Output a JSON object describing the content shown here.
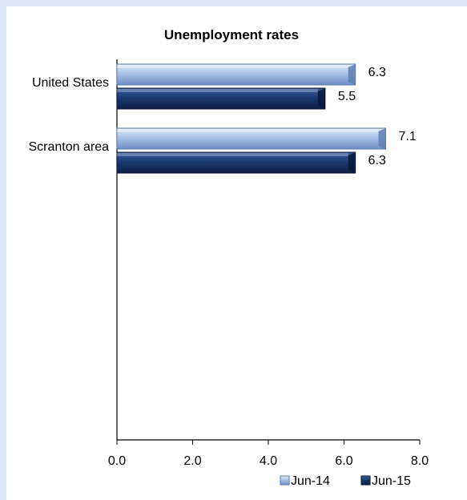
{
  "chart_data": {
    "type": "bar",
    "orientation": "horizontal",
    "title": "Unemployment rates",
    "categories": [
      "United States",
      "Scranton area"
    ],
    "series": [
      {
        "name": "Jun-14",
        "values": [
          6.3,
          7.1
        ],
        "color": "#a9c2e6"
      },
      {
        "name": "Jun-15",
        "values": [
          5.5,
          6.3
        ],
        "color": "#1c3a6e"
      }
    ],
    "xlim": [
      0,
      8
    ],
    "xticks": [
      "0.0",
      "2.0",
      "4.0",
      "6.0",
      "8.0"
    ],
    "data_labels": [
      [
        "6.3",
        "7.1"
      ],
      [
        "5.5",
        "6.3"
      ]
    ],
    "grid": false,
    "legend_position": "bottom-right"
  }
}
